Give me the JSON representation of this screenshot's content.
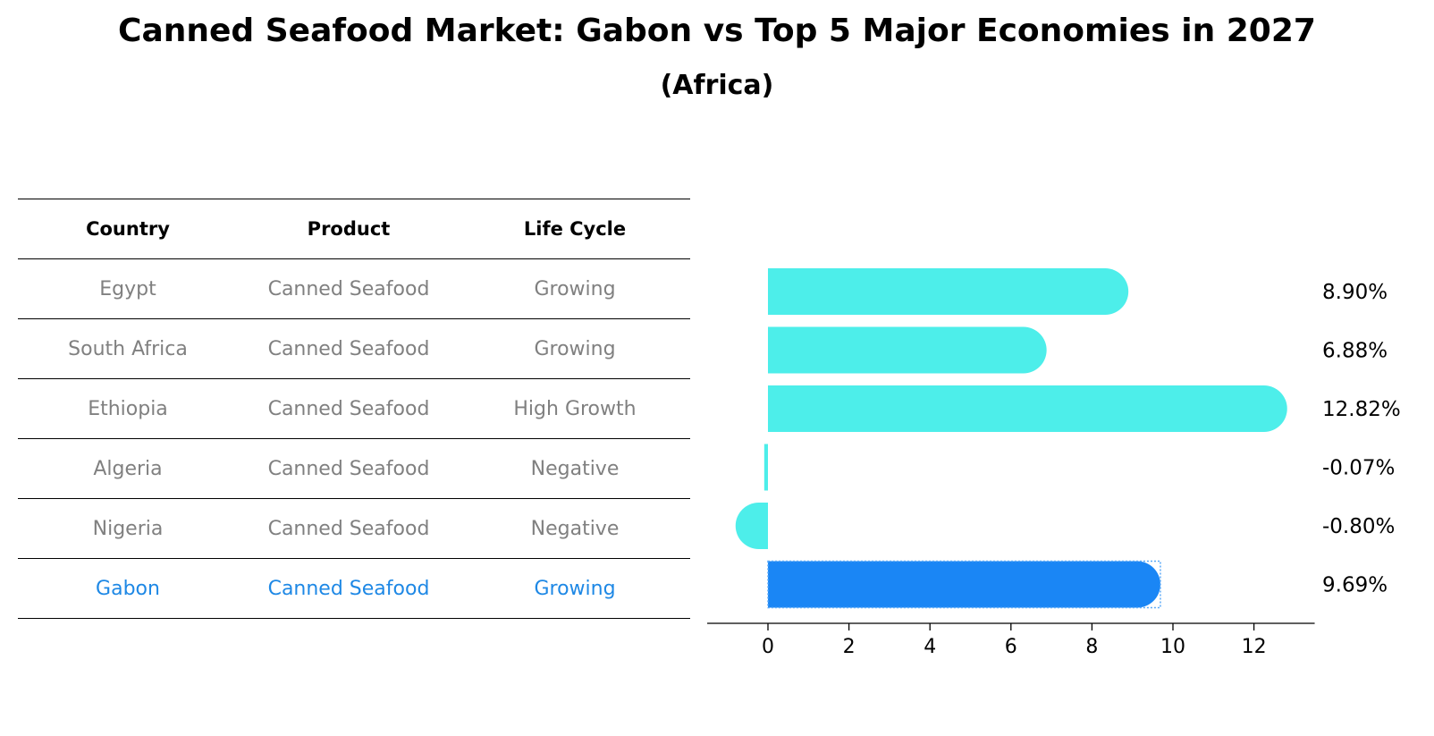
{
  "title": "Canned Seafood Market: Gabon vs Top 5 Major Economies in 2027",
  "subtitle": "(Africa)",
  "table": {
    "headers": [
      "Country",
      "Product",
      "Life Cycle"
    ],
    "rows": [
      [
        "Egypt",
        "Canned Seafood",
        "Growing"
      ],
      [
        "South Africa",
        "Canned Seafood",
        "Growing"
      ],
      [
        "Ethiopia",
        "Canned Seafood",
        "High Growth"
      ],
      [
        "Algeria",
        "Canned Seafood",
        "Negative"
      ],
      [
        "Nigeria",
        "Canned Seafood",
        "Negative"
      ],
      [
        "Gabon",
        "Canned Seafood",
        "Growing"
      ]
    ],
    "highlight_row": 5
  },
  "colors": {
    "bar": "#4deeea",
    "highlight_bar": "#1a86f5",
    "muted_text": "#808080",
    "highlight_text": "#1e88e5"
  },
  "chart_data": {
    "type": "bar",
    "orientation": "horizontal",
    "categories": [
      "Egypt",
      "South Africa",
      "Ethiopia",
      "Algeria",
      "Nigeria",
      "Gabon"
    ],
    "values": [
      8.9,
      6.88,
      12.82,
      -0.07,
      -0.8,
      9.69
    ],
    "value_labels": [
      "8.90%",
      "6.88%",
      "12.82%",
      "-0.07%",
      "-0.80%",
      "9.69%"
    ],
    "highlight_index": 5,
    "xticks": [
      0,
      2,
      4,
      6,
      8,
      10,
      12
    ],
    "xlim": [
      -1.5,
      13.5
    ],
    "grid": false
  }
}
